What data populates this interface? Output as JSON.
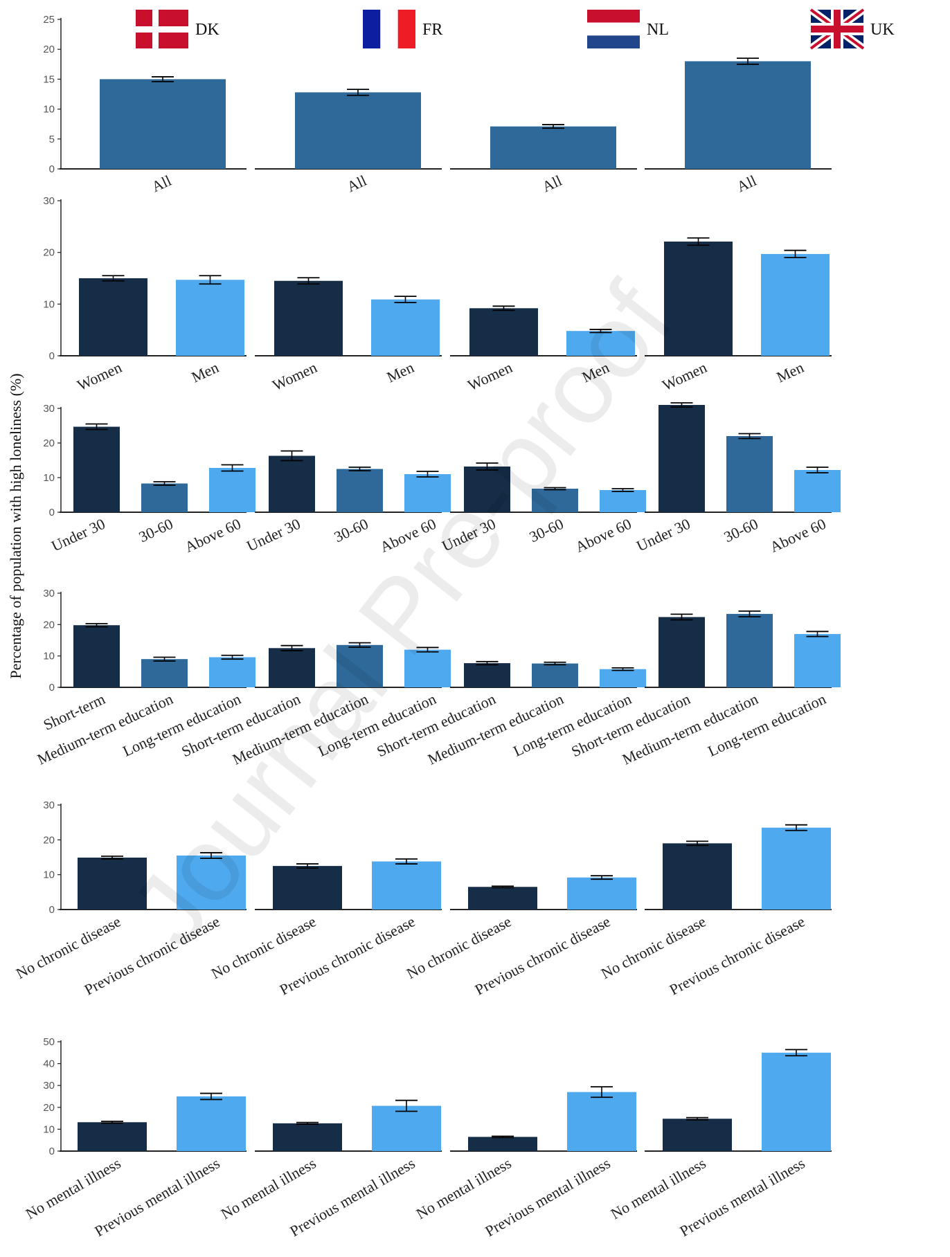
{
  "ylabel": "Percentage of population with high loneliness (%)",
  "watermark": "Journal Pre-proof",
  "colors": {
    "c1": "#152d47",
    "c2": "#2e6999",
    "c3": "#4fa9ee",
    "flag_red": "#c8102e",
    "flag_blue": "#21468b",
    "fr_blue": "#0d1f9e",
    "fr_red": "#ee1c25",
    "uk_blue": "#012169"
  },
  "countries": [
    {
      "code": "DK",
      "flag": "denmark-flag-icon"
    },
    {
      "code": "FR",
      "flag": "france-flag-icon"
    },
    {
      "code": "NL",
      "flag": "netherlands-flag-icon"
    },
    {
      "code": "UK",
      "flag": "united-kingdom-flag-icon"
    }
  ],
  "chart_data": [
    {
      "type": "bar",
      "id": "all",
      "categories": [
        "All"
      ],
      "ylim": [
        0,
        25
      ],
      "yticks": [
        0,
        5,
        10,
        15,
        20,
        25
      ],
      "colors": [
        "c2"
      ],
      "values": {
        "DK": [
          15.0
        ],
        "FR": [
          12.8
        ],
        "NL": [
          7.1
        ],
        "UK": [
          18.0
        ]
      },
      "errors": {
        "DK": [
          0.4
        ],
        "FR": [
          0.5
        ],
        "NL": [
          0.3
        ],
        "UK": [
          0.5
        ]
      }
    },
    {
      "type": "bar",
      "id": "gender",
      "categories": [
        "Women",
        "Men"
      ],
      "ylim": [
        0,
        30
      ],
      "yticks": [
        0,
        10,
        20,
        30
      ],
      "colors": [
        "c1",
        "c3"
      ],
      "values": {
        "DK": [
          15.0,
          14.7
        ],
        "FR": [
          14.5,
          10.9
        ],
        "NL": [
          9.2,
          4.8
        ],
        "UK": [
          22.1,
          19.7
        ]
      },
      "errors": {
        "DK": [
          0.5,
          0.8
        ],
        "FR": [
          0.6,
          0.6
        ],
        "NL": [
          0.4,
          0.3
        ],
        "UK": [
          0.7,
          0.7
        ]
      }
    },
    {
      "type": "bar",
      "id": "age",
      "categories": [
        "Under 30",
        "30-60",
        "Above 60"
      ],
      "ylim": [
        0,
        30
      ],
      "yticks": [
        0,
        10,
        20,
        30
      ],
      "colors": [
        "c1",
        "c2",
        "c3"
      ],
      "values": {
        "DK": [
          24.7,
          8.3,
          12.8
        ],
        "FR": [
          16.3,
          12.5,
          11.0
        ],
        "NL": [
          13.2,
          6.8,
          6.4
        ],
        "UK": [
          31.0,
          22.0,
          12.2
        ]
      },
      "errors": {
        "DK": [
          0.8,
          0.5,
          0.9
        ],
        "FR": [
          1.4,
          0.5,
          0.8
        ],
        "NL": [
          1.0,
          0.3,
          0.4
        ],
        "UK": [
          0.6,
          0.7,
          0.8
        ]
      }
    },
    {
      "type": "bar",
      "id": "education",
      "categories": [
        "Short-term",
        "Medium-term education",
        "Long-term education"
      ],
      "categories_alt": [
        "Short-term education",
        "Medium-term education",
        "Long-term education"
      ],
      "ylim": [
        0,
        30
      ],
      "yticks": [
        0,
        10,
        20,
        30
      ],
      "colors": [
        "c1",
        "c2",
        "c3"
      ],
      "values": {
        "DK": [
          19.8,
          9.0,
          9.6
        ],
        "FR": [
          12.5,
          13.5,
          12.0
        ],
        "NL": [
          7.7,
          7.6,
          5.8
        ],
        "UK": [
          22.4,
          23.4,
          17.0
        ]
      },
      "errors": {
        "DK": [
          0.5,
          0.6,
          0.6
        ],
        "FR": [
          0.8,
          0.7,
          0.7
        ],
        "NL": [
          0.5,
          0.4,
          0.4
        ],
        "UK": [
          0.9,
          0.9,
          0.8
        ]
      }
    },
    {
      "type": "bar",
      "id": "chronic",
      "categories": [
        "No chronic disease",
        "Previous chronic disease"
      ],
      "ylim": [
        0,
        30
      ],
      "yticks": [
        0,
        10,
        20,
        30
      ],
      "colors": [
        "c1",
        "c3"
      ],
      "values": {
        "DK": [
          14.9,
          15.5
        ],
        "FR": [
          12.5,
          13.8
        ],
        "NL": [
          6.5,
          9.2
        ],
        "UK": [
          19.0,
          23.5
        ]
      },
      "errors": {
        "DK": [
          0.4,
          0.8
        ],
        "FR": [
          0.6,
          0.7
        ],
        "NL": [
          0.2,
          0.5
        ],
        "UK": [
          0.6,
          0.8
        ]
      }
    },
    {
      "type": "bar",
      "id": "mental",
      "categories": [
        "No mental illness",
        "Previous mental illness"
      ],
      "ylim": [
        0,
        50
      ],
      "yticks": [
        0,
        10,
        20,
        30,
        40,
        50
      ],
      "colors": [
        "c1",
        "c3"
      ],
      "values": {
        "DK": [
          13.2,
          25.0
        ],
        "FR": [
          12.7,
          20.7
        ],
        "NL": [
          6.5,
          27.0
        ],
        "UK": [
          14.8,
          45.0
        ]
      },
      "errors": {
        "DK": [
          0.4,
          1.4
        ],
        "FR": [
          0.4,
          2.5
        ],
        "NL": [
          0.3,
          2.4
        ],
        "UK": [
          0.5,
          1.4
        ]
      }
    }
  ]
}
